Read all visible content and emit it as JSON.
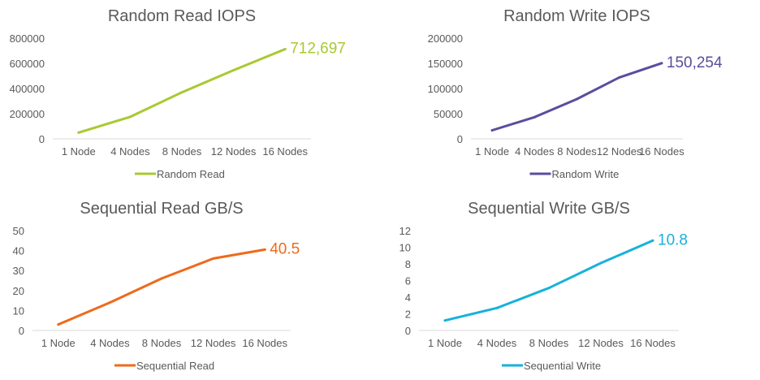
{
  "chart_data": [
    {
      "type": "line",
      "title": "Random Read IOPS",
      "categories": [
        "1 Node",
        "4 Nodes",
        "8 Nodes",
        "12 Nodes",
        "16 Nodes"
      ],
      "series": [
        {
          "name": "Random Read",
          "values": [
            50000,
            175000,
            370000,
            545000,
            712697
          ],
          "color": "#a9c931"
        }
      ],
      "ylim": [
        0,
        800000
      ],
      "yticks": [
        "0",
        "200000",
        "400000",
        "600000",
        "800000"
      ],
      "end_label": "712,697",
      "legend": "bottom",
      "grid": false
    },
    {
      "type": "line",
      "title": "Random Write IOPS",
      "categories": [
        "1 Node",
        "4 Nodes",
        "8 Nodes",
        "12 Nodes",
        "16 Nodes"
      ],
      "series": [
        {
          "name": "Random Write",
          "values": [
            17000,
            43000,
            79000,
            122000,
            150254
          ],
          "color": "#5a4d9e"
        }
      ],
      "ylim": [
        0,
        200000
      ],
      "yticks": [
        "0",
        "50000",
        "100000",
        "150000",
        "200000"
      ],
      "end_label": "150,254",
      "legend": "bottom",
      "grid": false
    },
    {
      "type": "line",
      "title": "Sequential Read GB/S",
      "categories": [
        "1 Node",
        "4 Nodes",
        "8 Nodes",
        "12 Nodes",
        "16 Nodes"
      ],
      "series": [
        {
          "name": "Sequential Read",
          "values": [
            3,
            14,
            26,
            36,
            40.5
          ],
          "color": "#ee6a1b"
        }
      ],
      "ylim": [
        0,
        50
      ],
      "yticks": [
        "0",
        "10",
        "20",
        "30",
        "40",
        "50"
      ],
      "end_label": "40.5",
      "legend": "bottom",
      "grid": false
    },
    {
      "type": "line",
      "title": "Sequential Write GB/S",
      "categories": [
        "1 Node",
        "4 Nodes",
        "8 Nodes",
        "12 Nodes",
        "16 Nodes"
      ],
      "series": [
        {
          "name": "Sequential Write",
          "values": [
            1.2,
            2.7,
            5.1,
            8.1,
            10.8
          ],
          "color": "#16b2db"
        }
      ],
      "ylim": [
        0,
        12
      ],
      "yticks": [
        "0",
        "2",
        "4",
        "6",
        "8",
        "10",
        "12"
      ],
      "end_label": "10.8",
      "legend": "bottom",
      "grid": false
    }
  ]
}
